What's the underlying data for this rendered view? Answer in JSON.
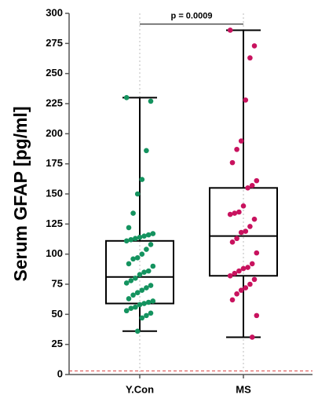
{
  "chart_data": {
    "type": "box",
    "ylabel": "Serum GFAP [pg/ml]",
    "categories": [
      "Y.Con",
      "MS"
    ],
    "groups": [
      {
        "color": "#14935f",
        "min": 36,
        "q1": 59,
        "median": 81,
        "q3": 111,
        "max": 230,
        "points": [
          230,
          227,
          186,
          162,
          150,
          134,
          122,
          117,
          116,
          115,
          114,
          113,
          112,
          111,
          108,
          104,
          100,
          97,
          96,
          92,
          90,
          86,
          85,
          83,
          80,
          78,
          76,
          74,
          72,
          70,
          68,
          66,
          63,
          61,
          60,
          59,
          58,
          56,
          55,
          53,
          51,
          49,
          47,
          36
        ]
      },
      {
        "color": "#c8125e",
        "min": 31,
        "q1": 82,
        "median": 115,
        "q3": 155,
        "max": 286,
        "points": [
          286,
          273,
          263,
          228,
          194,
          187,
          176,
          161,
          157,
          155,
          140,
          135,
          134,
          133,
          129,
          123,
          119,
          118,
          113,
          110,
          101,
          92,
          89,
          88,
          86,
          84,
          82,
          79,
          75,
          72,
          70,
          67,
          62,
          49,
          31
        ]
      }
    ],
    "ylim": [
      0,
      300
    ],
    "yticks": [
      0,
      25,
      50,
      75,
      100,
      125,
      150,
      175,
      200,
      225,
      250,
      275,
      300
    ],
    "grid": "x",
    "reference_line": {
      "value": 3,
      "color": "#d94040"
    },
    "annotation": {
      "text": "p = 0.0009",
      "value": 291
    }
  }
}
